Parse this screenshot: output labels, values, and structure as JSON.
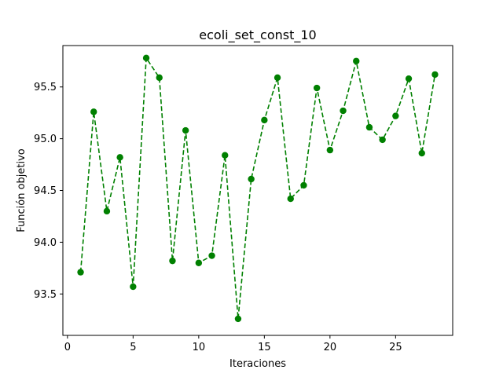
{
  "chart_data": {
    "type": "line",
    "title": "ecoli_set_const_10",
    "xlabel": "Iteraciones",
    "ylabel": "Función objetivo",
    "xlim": [
      -0.35,
      29.35
    ],
    "ylim": [
      93.1,
      95.9
    ],
    "xticks": [
      0,
      5,
      10,
      15,
      20,
      25
    ],
    "yticks": [
      93.5,
      94.0,
      94.5,
      95.0,
      95.5
    ],
    "ytick_labels": [
      "93.5",
      "94.0",
      "94.5",
      "95.0",
      "95.5"
    ],
    "grid": false,
    "line_style": "dashed",
    "marker": "circle",
    "color": "#008000",
    "series": [
      {
        "x": [
          1,
          2,
          3,
          4,
          5,
          6,
          7,
          8,
          9,
          10,
          11,
          12,
          13,
          14,
          15,
          16,
          17,
          18,
          19,
          20,
          21,
          22,
          23,
          24,
          25,
          26,
          27,
          28
        ],
        "y": [
          93.71,
          95.26,
          94.3,
          94.82,
          93.57,
          95.78,
          95.59,
          93.82,
          95.08,
          93.8,
          93.87,
          94.84,
          93.26,
          94.61,
          95.18,
          95.59,
          94.42,
          94.55,
          95.49,
          94.89,
          95.27,
          95.75,
          95.11,
          94.99,
          95.22,
          95.58,
          94.86,
          95.62
        ]
      }
    ]
  }
}
